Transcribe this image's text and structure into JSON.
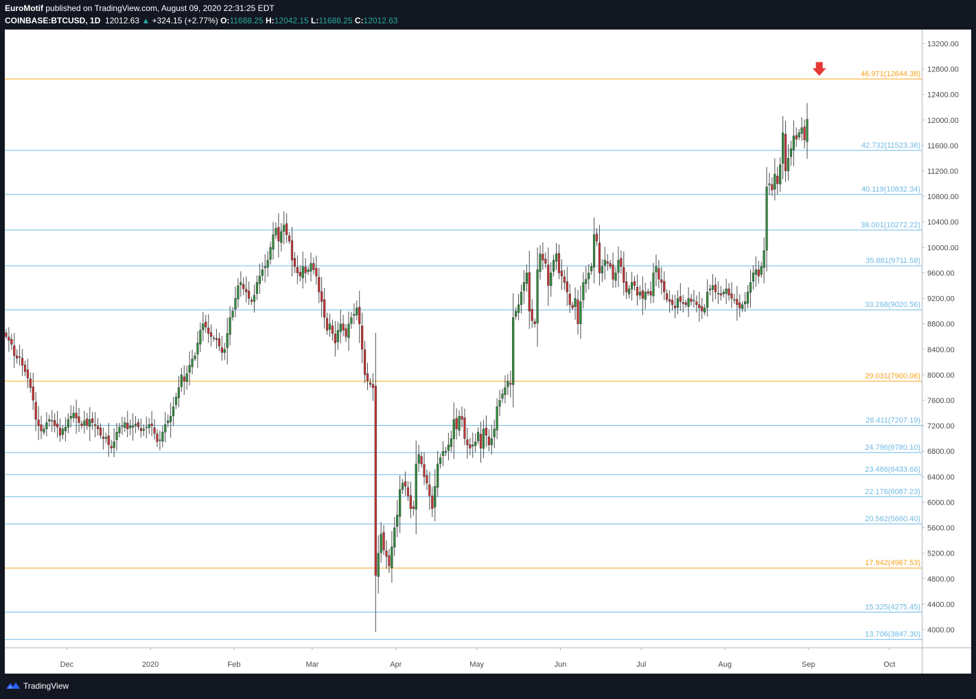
{
  "header": {
    "author": "EuroMotif",
    "published_text": "published on TradingView.com, August 09, 2020 22:31:25 EDT",
    "symbol": "COINBASE:BTCUSD",
    "interval": "1D",
    "last_price": "12012.63",
    "change_arrow": "▲",
    "change": "+324.15 (+2.77%)",
    "open_label": "O:",
    "open": "11688.25",
    "high_label": "H:",
    "high": "12042.15",
    "low_label": "L:",
    "low": "11688.25",
    "close_label": "C:",
    "close": "12012.63"
  },
  "footer": {
    "brand": "TradingView"
  },
  "colors": {
    "up": "#26a69a",
    "candle_up": "#2e8b3a",
    "candle_down": "#c83232",
    "fib_blue": "#6db9e4",
    "fib_orange": "#f7a21b",
    "arrow": "#e53935",
    "axis_text": "#4a4a4a"
  },
  "icons": {
    "marker": "down-arrow-icon",
    "logo": "tradingview-logo-icon"
  },
  "chart_data": {
    "type": "candlestick",
    "title": "COINBASE:BTCUSD, 1D",
    "ylim": [
      3720,
      13420
    ],
    "y_ticks": [
      "13200.00",
      "12800.00",
      "12400.00",
      "12000.00",
      "11600.00",
      "11200.00",
      "10800.00",
      "10400.00",
      "10000.00",
      "9600.00",
      "9200.00",
      "8800.00",
      "8400.00",
      "8000.00",
      "7600.00",
      "7200.00",
      "6800.00",
      "6400.00",
      "6000.00",
      "5600.00",
      "5200.00",
      "4800.00",
      "4400.00",
      "4000.00"
    ],
    "x_range": [
      "2019-11-08",
      "2020-10-13"
    ],
    "x_ticks": [
      {
        "date": "2019-12-01",
        "label": "Dec"
      },
      {
        "date": "2020-01-01",
        "label": "2020"
      },
      {
        "date": "2020-02-01",
        "label": "Feb"
      },
      {
        "date": "2020-03-01",
        "label": "Mar"
      },
      {
        "date": "2020-04-01",
        "label": "Apr"
      },
      {
        "date": "2020-05-01",
        "label": "May"
      },
      {
        "date": "2020-06-01",
        "label": "Jun"
      },
      {
        "date": "2020-07-01",
        "label": "Jul"
      },
      {
        "date": "2020-08-01",
        "label": "Aug"
      },
      {
        "date": "2020-09-01",
        "label": "Sep"
      },
      {
        "date": "2020-10-01",
        "label": "Oct"
      }
    ],
    "levels": [
      {
        "value": 12644.38,
        "label": "46.971(12644.38)",
        "color": "orange"
      },
      {
        "value": 11523.36,
        "label": "42.732(11523.36)",
        "color": "blue"
      },
      {
        "value": 10832.34,
        "label": "40.119(10832.34)",
        "color": "blue"
      },
      {
        "value": 10272.22,
        "label": "38.001(10272.22)",
        "color": "blue"
      },
      {
        "value": 9711.58,
        "label": "35.881(9711.58)",
        "color": "blue"
      },
      {
        "value": 9020.56,
        "label": "33.268(9020.56)",
        "color": "blue"
      },
      {
        "value": 7900.06,
        "label": "29.031(7900.06)",
        "color": "orange"
      },
      {
        "value": 7207.19,
        "label": "26.411(7207.19)",
        "color": "blue"
      },
      {
        "value": 6780.1,
        "label": "24.796(6780.10)",
        "color": "blue"
      },
      {
        "value": 6433.66,
        "label": "23.486(6433.66)",
        "color": "blue"
      },
      {
        "value": 6087.23,
        "label": "22.176(6087.23)",
        "color": "blue"
      },
      {
        "value": 5660.4,
        "label": "20.562(5660.40)",
        "color": "blue"
      },
      {
        "value": 4967.53,
        "label": "17.942(4967.53)",
        "color": "orange"
      },
      {
        "value": 4275.45,
        "label": "15.325(4275.45)",
        "color": "blue"
      },
      {
        "value": 3847.3,
        "label": "13.706(3847.30)",
        "color": "blue"
      }
    ],
    "marker": {
      "date": "2020-09-05",
      "value": 12780,
      "shape": "down-arrow"
    },
    "close_series": {
      "start_date": "2019-11-08",
      "interval": "1D",
      "values": [
        8600,
        8540,
        8480,
        8300,
        8260,
        8280,
        8150,
        8050,
        7950,
        7800,
        7600,
        7300,
        7200,
        7120,
        7150,
        7250,
        7300,
        7280,
        7200,
        7180,
        7050,
        7150,
        7180,
        7300,
        7350,
        7400,
        7320,
        7250,
        7200,
        7280,
        7200,
        7300,
        7250,
        7200,
        7150,
        7050,
        7000,
        7020,
        6900,
        6850,
        6950,
        7100,
        7180,
        7200,
        7250,
        7150,
        7200,
        7200,
        7230,
        7180,
        7120,
        7150,
        7180,
        7220,
        7200,
        7080,
        6950,
        6980,
        7100,
        7220,
        7280,
        7350,
        7500,
        7650,
        7800,
        8000,
        7900,
        8020,
        8150,
        8250,
        8300,
        8500,
        8700,
        8800,
        8750,
        8650,
        8600,
        8580,
        8550,
        8450,
        8350,
        8400,
        8650,
        8900,
        9000,
        9200,
        9400,
        9450,
        9350,
        9300,
        9200,
        9150,
        9250,
        9450,
        9550,
        9650,
        9700,
        9800,
        10000,
        10200,
        10300,
        10100,
        10250,
        10350,
        10200,
        10100,
        9800,
        9700,
        9600,
        9550,
        9700,
        9600,
        9650,
        9750,
        9650,
        9550,
        9300,
        9150,
        8900,
        8700,
        8800,
        8650,
        8500,
        8700,
        8800,
        8700,
        8600,
        8800,
        8900,
        8950,
        9050,
        8800,
        8400,
        8000,
        7900,
        7850,
        7800,
        4850,
        5200,
        5500,
        5250,
        5150,
        5000,
        5300,
        5600,
        5800,
        6200,
        6300,
        6250,
        6100,
        5900,
        5900,
        6600,
        6750,
        6600,
        6400,
        6300,
        6100,
        5900,
        6250,
        6600,
        6700,
        6800,
        6800,
        6900,
        7000,
        7300,
        7150,
        7350,
        7300,
        7000,
        6900,
        6850,
        6900,
        6950,
        7100,
        6850,
        7150,
        7050,
        6900,
        7000,
        7150,
        7500,
        7600,
        7700,
        7800,
        7900,
        7850,
        8900,
        9000,
        9100,
        9300,
        9450,
        9600,
        9000,
        8850,
        8800,
        9650,
        9900,
        9800,
        9750,
        9400,
        9600,
        9800,
        9900,
        9600,
        9550,
        9450,
        9300,
        9100,
        9050,
        9200,
        8800,
        9150,
        9450,
        9500,
        9600,
        9700,
        10200,
        10100,
        9600,
        9700,
        9800,
        9750,
        9700,
        9500,
        9600,
        9800,
        9700,
        9450,
        9300,
        9350,
        9450,
        9400,
        9250,
        9300,
        9200,
        9300,
        9280,
        9250,
        9600,
        9700,
        9500,
        9450,
        9300,
        9180,
        9150,
        9100,
        9050,
        9200,
        9150,
        9120,
        9100,
        9200,
        9150,
        9170,
        9100,
        9050,
        9000,
        9050,
        9300,
        9350,
        9400,
        9300,
        9280,
        9250,
        9300,
        9350,
        9250,
        9200,
        9180,
        9100,
        9050,
        9100,
        9150,
        9300,
        9450,
        9600,
        9650,
        9550,
        9700,
        9950,
        10950,
        11000,
        10900,
        11150,
        11000,
        11300,
        11800,
        11200,
        11400,
        11550,
        11750,
        11700,
        11800,
        11880,
        11688,
        12012
      ]
    }
  }
}
